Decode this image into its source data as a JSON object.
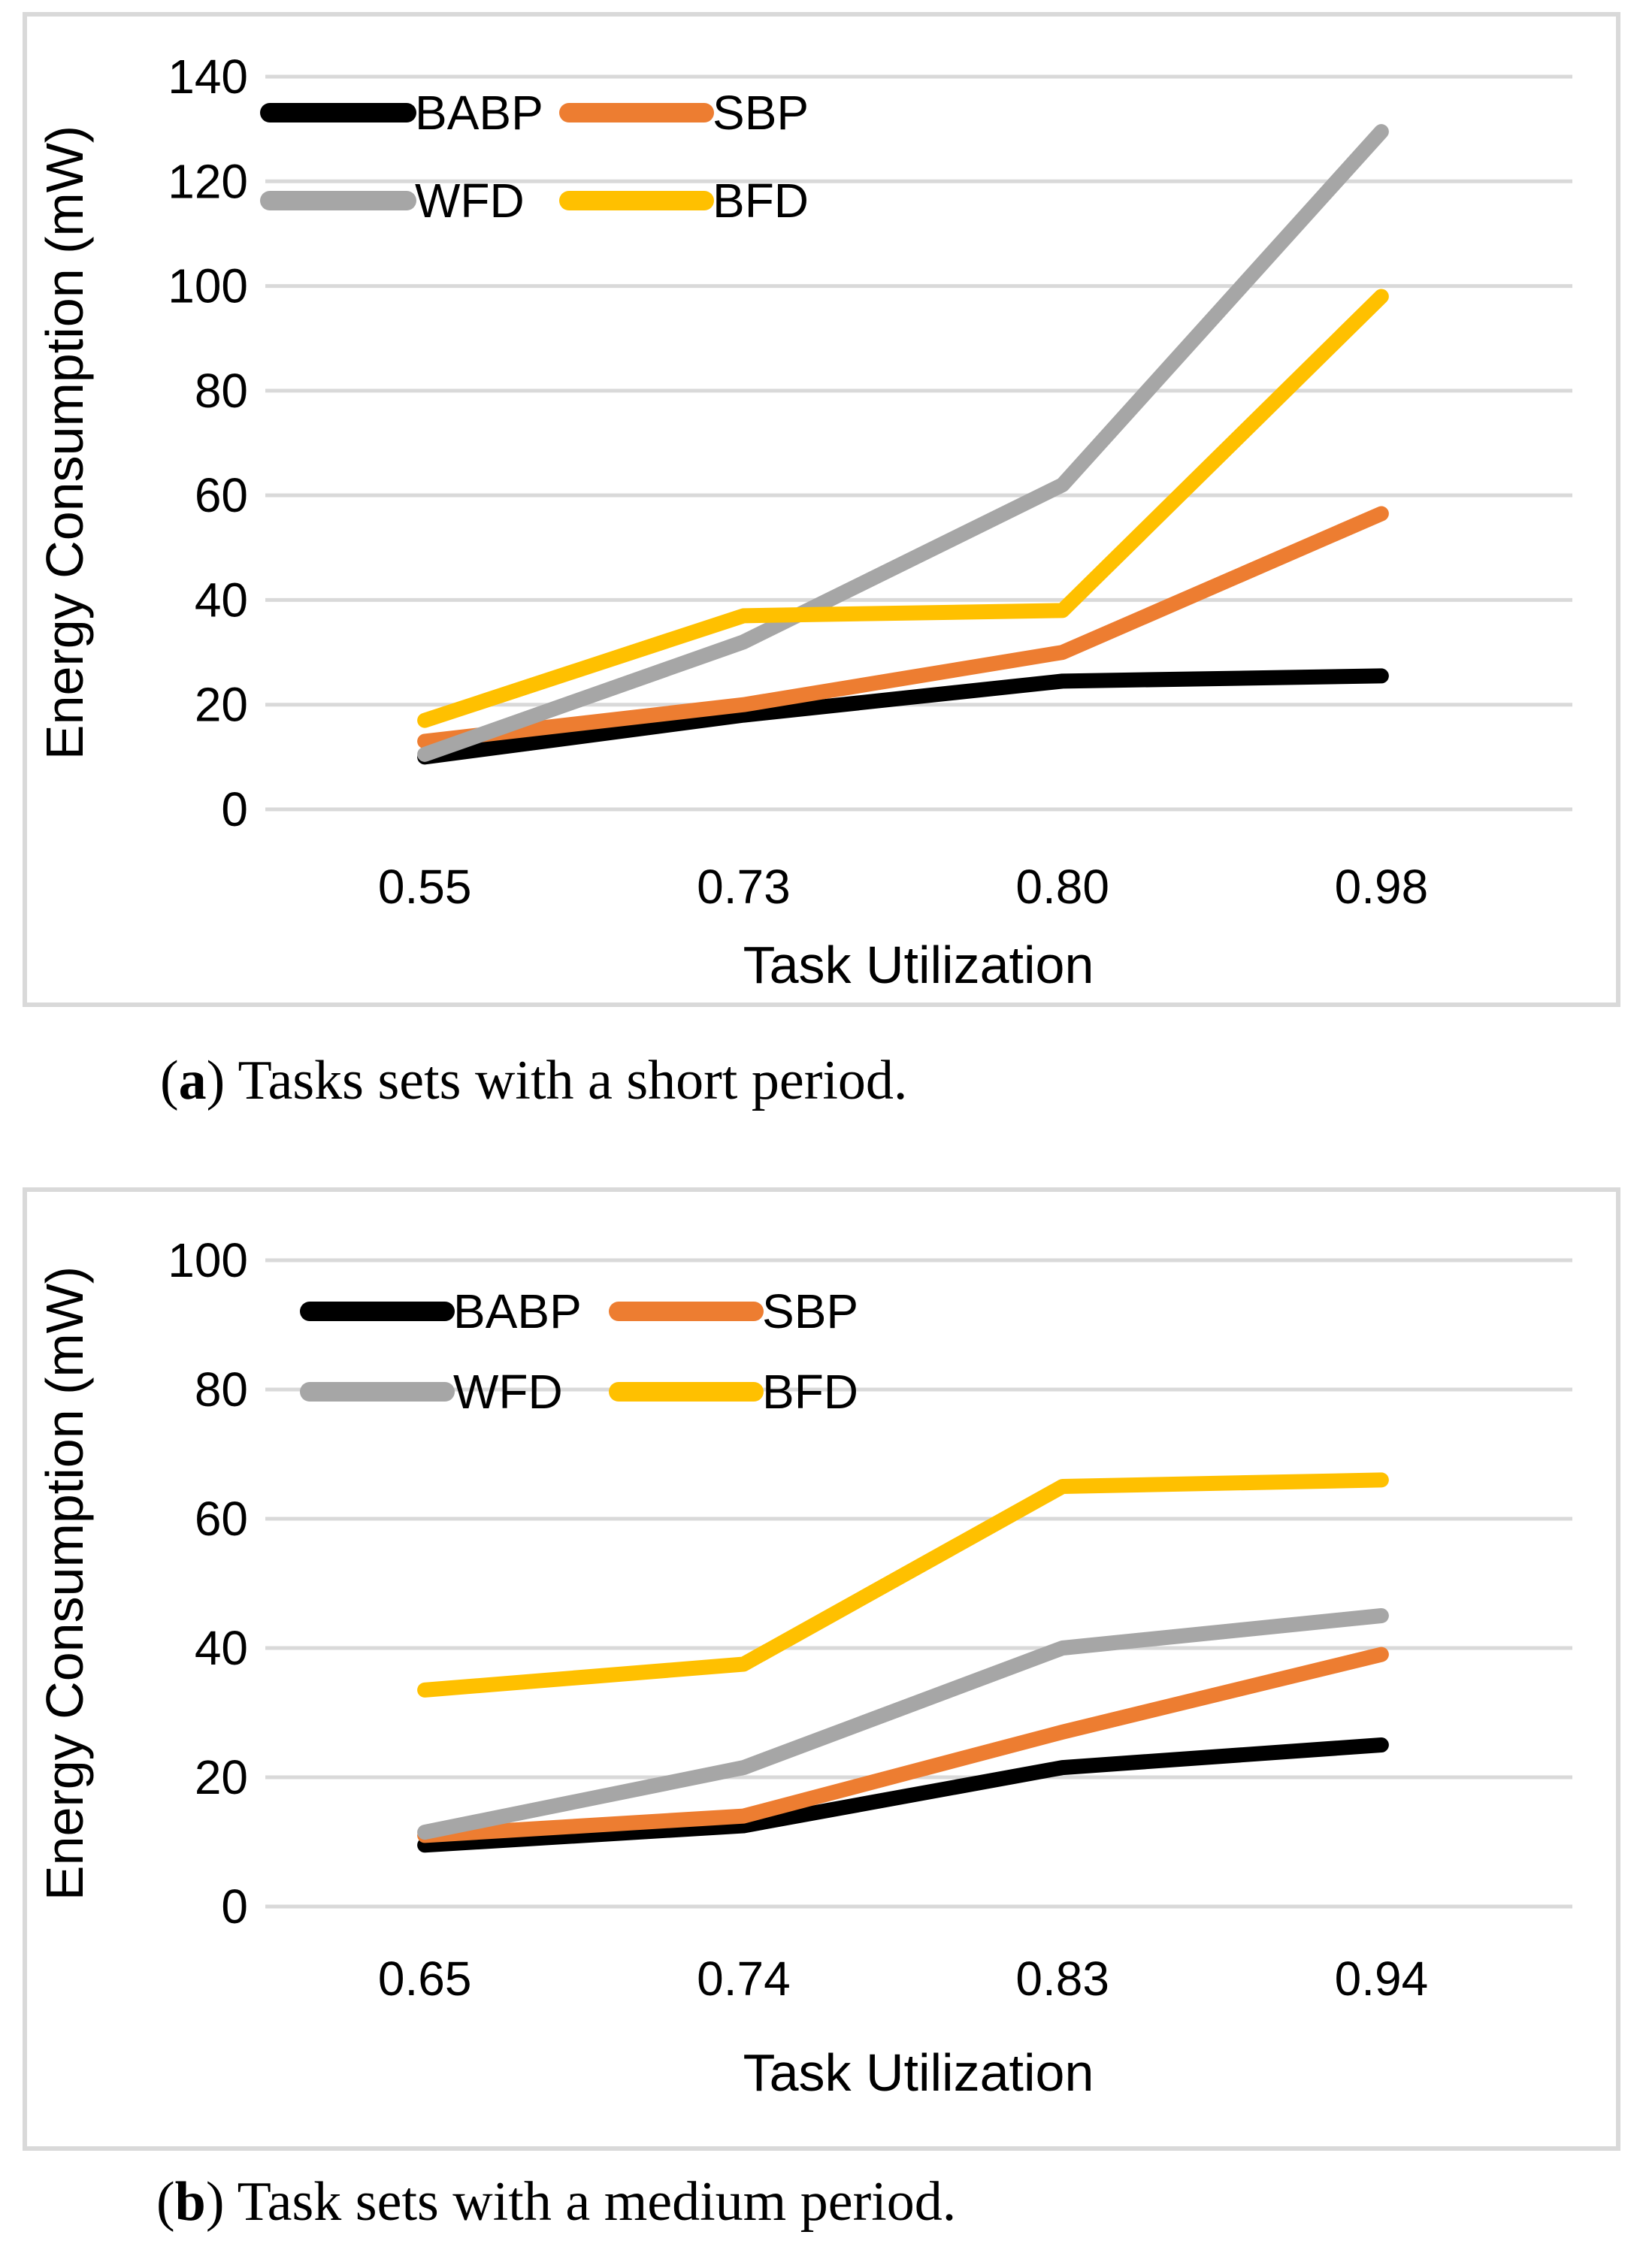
{
  "page": {
    "background": "#ffffff"
  },
  "palette": {
    "gridline": "#D9D9D9",
    "chart_border": "#D9D9D9",
    "text": "#000000",
    "series_babp": "#000000",
    "series_sbp": "#ED7D31",
    "series_wfd": "#A6A6A6",
    "series_bfd": "#FFC000"
  },
  "chart_data": [
    {
      "type": "line",
      "title": "",
      "xlabel": "Task Utilization",
      "ylabel": "Energy Consumption (mW)",
      "categories": [
        "0.55",
        "0.73",
        "0.80",
        "0.98"
      ],
      "series": [
        {
          "name": "BABP",
          "color": "#000000",
          "values": [
            10,
            18,
            24.5,
            25.5
          ]
        },
        {
          "name": "SBP",
          "color": "#ED7D31",
          "values": [
            13,
            20,
            30,
            56.5
          ]
        },
        {
          "name": "WFD",
          "color": "#A6A6A6",
          "values": [
            10.5,
            32,
            62,
            129.5
          ]
        },
        {
          "name": "BFD",
          "color": "#FFC000",
          "values": [
            17,
            37,
            38,
            98
          ]
        }
      ],
      "ylim": [
        0,
        140
      ],
      "yticks": [
        0,
        20,
        40,
        60,
        80,
        100,
        120,
        140
      ],
      "grid": true,
      "legend_position": "top-inside-two-columns",
      "caption": {
        "open": "(",
        "letter": "a",
        "close": ") ",
        "text": "Tasks sets with a short period."
      }
    },
    {
      "type": "line",
      "title": "",
      "xlabel": "Task Utilization",
      "ylabel": "Energy Consumption (mW)",
      "categories": [
        "0.65",
        "0.74",
        "0.83",
        "0.94"
      ],
      "series": [
        {
          "name": "BABP",
          "color": "#000000",
          "values": [
            9.5,
            12.5,
            21.5,
            25
          ]
        },
        {
          "name": "SBP",
          "color": "#ED7D31",
          "values": [
            11,
            14,
            27,
            39
          ]
        },
        {
          "name": "WFD",
          "color": "#A6A6A6",
          "values": [
            11.5,
            21.5,
            40,
            45
          ]
        },
        {
          "name": "BFD",
          "color": "#FFC000",
          "values": [
            33.5,
            37.5,
            65,
            66
          ]
        }
      ],
      "ylim": [
        0,
        100
      ],
      "yticks": [
        0,
        20,
        40,
        60,
        80,
        100
      ],
      "grid": true,
      "legend_position": "top-inside-two-columns",
      "caption": {
        "open": "(",
        "letter": "b",
        "close": ") ",
        "text": "Task sets with a medium period."
      }
    }
  ]
}
